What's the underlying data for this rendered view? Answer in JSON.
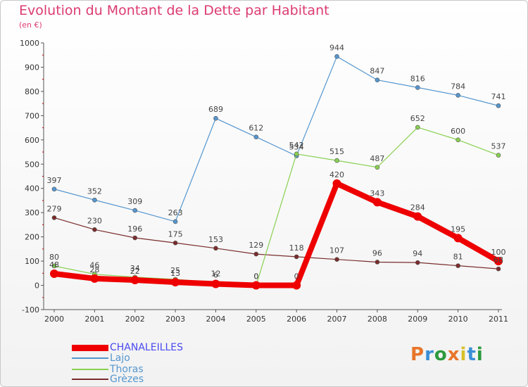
{
  "header": {
    "title": "Evolution du Montant de la Dette par Habitant",
    "subtitle": "(en €)"
  },
  "logo": {
    "text": "Proxiti",
    "colors": [
      "#e8752a",
      "#3a8fd6",
      "#2d9a3e",
      "#e8752a",
      "#d8c02a",
      "#3a8fd6",
      "#2d9a3e"
    ]
  },
  "chart_data": {
    "type": "line",
    "x": [
      "2000",
      "2001",
      "2002",
      "2003",
      "2004",
      "2005",
      "2006",
      "2007",
      "2008",
      "2009",
      "2010",
      "2011"
    ],
    "ylim": [
      -100,
      1000
    ],
    "yticks": [
      "1000",
      "900",
      "800",
      "700",
      "600",
      "500",
      "400",
      "300",
      "200",
      "100",
      "0",
      "-100"
    ],
    "grid": false,
    "legend_position": "bottom-left",
    "series": [
      {
        "name": "CHANALEILLES",
        "color": "#ee0000",
        "values": [
          48,
          28,
          22,
          13,
          6,
          0,
          0,
          420,
          343,
          284,
          195,
          100
        ],
        "labels": [
          "48",
          "28",
          "22",
          "13",
          "6",
          "0",
          "0",
          "420",
          "343",
          "284",
          "195",
          "100"
        ]
      },
      {
        "name": "Lajo",
        "color": "#5596cf",
        "values": [
          397,
          352,
          309,
          263,
          689,
          612,
          534,
          944,
          847,
          816,
          784,
          741
        ],
        "labels": [
          "397",
          "352",
          "309",
          "263",
          "689",
          "612",
          "534",
          "944",
          "847",
          "816",
          "784",
          "741"
        ]
      },
      {
        "name": "Thoras",
        "color": "#88d050",
        "values": [
          80,
          46,
          34,
          25,
          12,
          0,
          542,
          515,
          487,
          652,
          600,
          537
        ],
        "labels": [
          "80",
          "46",
          "34",
          "25",
          "12",
          "0",
          "542",
          "515",
          "487",
          "652",
          "600",
          "537"
        ]
      },
      {
        "name": "Grèzes",
        "color": "#7a2c2c",
        "values": [
          279,
          230,
          196,
          175,
          153,
          129,
          118,
          107,
          96,
          94,
          81,
          68
        ],
        "labels": [
          "279",
          "230",
          "196",
          "175",
          "153",
          "129",
          "118",
          "107",
          "96",
          "94",
          "81",
          "68"
        ]
      }
    ]
  }
}
